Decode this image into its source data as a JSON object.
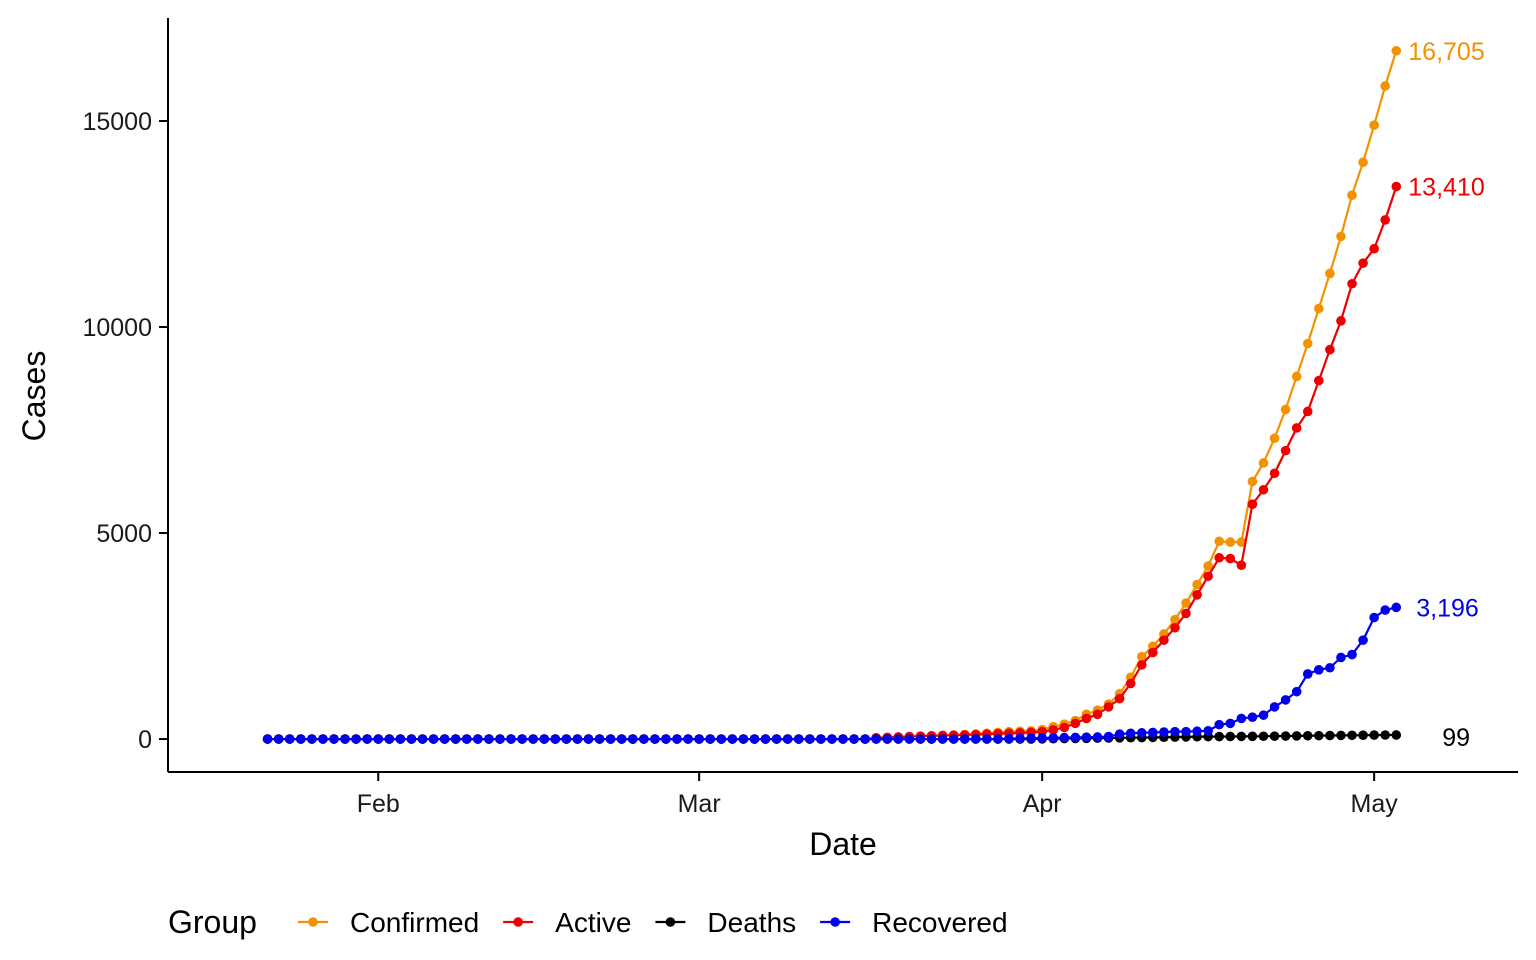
{
  "chart_data": {
    "type": "line",
    "xlabel": "Date",
    "ylabel": "Cases",
    "x_start": "2020-01-22",
    "x_end": "2020-05-03",
    "xlim": [
      "2020-01-13",
      "2020-05-14"
    ],
    "ylim": [
      -800,
      17500
    ],
    "x_ticks": [
      {
        "label": "Feb",
        "date": "2020-02-01"
      },
      {
        "label": "Mar",
        "date": "2020-03-01"
      },
      {
        "label": "Apr",
        "date": "2020-04-01"
      },
      {
        "label": "May",
        "date": "2020-05-01"
      }
    ],
    "y_ticks": [
      0,
      5000,
      10000,
      15000
    ],
    "grid": false,
    "legend": {
      "title": "Group",
      "position": "bottom"
    },
    "series": [
      {
        "name": "Confirmed",
        "color": "#F39200",
        "end_label": "16,705",
        "points": [
          [
            "2020-03-17",
            30
          ],
          [
            "2020-03-18",
            40
          ],
          [
            "2020-03-19",
            50
          ],
          [
            "2020-03-20",
            60
          ],
          [
            "2020-03-21",
            70
          ],
          [
            "2020-03-22",
            80
          ],
          [
            "2020-03-23",
            90
          ],
          [
            "2020-03-24",
            100
          ],
          [
            "2020-03-25",
            110
          ],
          [
            "2020-03-26",
            120
          ],
          [
            "2020-03-27",
            140
          ],
          [
            "2020-03-28",
            160
          ],
          [
            "2020-03-29",
            180
          ],
          [
            "2020-03-30",
            190
          ],
          [
            "2020-03-31",
            200
          ],
          [
            "2020-04-01",
            230
          ],
          [
            "2020-04-02",
            300
          ],
          [
            "2020-04-03",
            360
          ],
          [
            "2020-04-04",
            450
          ],
          [
            "2020-04-05",
            600
          ],
          [
            "2020-04-06",
            700
          ],
          [
            "2020-04-07",
            850
          ],
          [
            "2020-04-08",
            1100
          ],
          [
            "2020-04-09",
            1500
          ],
          [
            "2020-04-10",
            2000
          ],
          [
            "2020-04-11",
            2250
          ],
          [
            "2020-04-12",
            2550
          ],
          [
            "2020-04-13",
            2900
          ],
          [
            "2020-04-14",
            3300
          ],
          [
            "2020-04-15",
            3750
          ],
          [
            "2020-04-16",
            4200
          ],
          [
            "2020-04-17",
            4800
          ],
          [
            "2020-04-18",
            4780
          ],
          [
            "2020-04-19",
            4780
          ],
          [
            "2020-04-20",
            6250
          ],
          [
            "2020-04-21",
            6700
          ],
          [
            "2020-04-22",
            7300
          ],
          [
            "2020-04-23",
            8000
          ],
          [
            "2020-04-24",
            8800
          ],
          [
            "2020-04-25",
            9600
          ],
          [
            "2020-04-26",
            10450
          ],
          [
            "2020-04-27",
            11300
          ],
          [
            "2020-04-28",
            12200
          ],
          [
            "2020-04-29",
            13200
          ],
          [
            "2020-04-30",
            14000
          ],
          [
            "2020-05-01",
            14900
          ],
          [
            "2020-05-02",
            15850
          ],
          [
            "2020-05-03",
            16705
          ]
        ]
      },
      {
        "name": "Active",
        "color": "#EE0000",
        "end_label": "13,410",
        "points": [
          [
            "2020-03-17",
            30
          ],
          [
            "2020-03-18",
            40
          ],
          [
            "2020-03-19",
            50
          ],
          [
            "2020-03-20",
            60
          ],
          [
            "2020-03-21",
            70
          ],
          [
            "2020-03-22",
            80
          ],
          [
            "2020-03-23",
            85
          ],
          [
            "2020-03-24",
            90
          ],
          [
            "2020-03-25",
            100
          ],
          [
            "2020-03-26",
            110
          ],
          [
            "2020-03-27",
            120
          ],
          [
            "2020-03-28",
            130
          ],
          [
            "2020-03-29",
            140
          ],
          [
            "2020-03-30",
            150
          ],
          [
            "2020-03-31",
            160
          ],
          [
            "2020-04-01",
            180
          ],
          [
            "2020-04-02",
            220
          ],
          [
            "2020-04-03",
            280
          ],
          [
            "2020-04-04",
            380
          ],
          [
            "2020-04-05",
            500
          ],
          [
            "2020-04-06",
            600
          ],
          [
            "2020-04-07",
            780
          ],
          [
            "2020-04-08",
            980
          ],
          [
            "2020-04-09",
            1350
          ],
          [
            "2020-04-10",
            1800
          ],
          [
            "2020-04-11",
            2100
          ],
          [
            "2020-04-12",
            2400
          ],
          [
            "2020-04-13",
            2700
          ],
          [
            "2020-04-14",
            3050
          ],
          [
            "2020-04-15",
            3500
          ],
          [
            "2020-04-16",
            3950
          ],
          [
            "2020-04-17",
            4400
          ],
          [
            "2020-04-18",
            4380
          ],
          [
            "2020-04-19",
            4220
          ],
          [
            "2020-04-20",
            5700
          ],
          [
            "2020-04-21",
            6050
          ],
          [
            "2020-04-22",
            6450
          ],
          [
            "2020-04-23",
            7000
          ],
          [
            "2020-04-24",
            7550
          ],
          [
            "2020-04-25",
            7950
          ],
          [
            "2020-04-26",
            8700
          ],
          [
            "2020-04-27",
            9450
          ],
          [
            "2020-04-28",
            10150
          ],
          [
            "2020-04-29",
            11050
          ],
          [
            "2020-04-30",
            11550
          ],
          [
            "2020-05-01",
            11900
          ],
          [
            "2020-05-02",
            12600
          ],
          [
            "2020-05-03",
            13410
          ]
        ]
      },
      {
        "name": "Deaths",
        "color": "#000000",
        "end_label": "99",
        "points": [
          [
            "2020-04-01",
            5
          ],
          [
            "2020-04-02",
            8
          ],
          [
            "2020-04-03",
            12
          ],
          [
            "2020-04-04",
            15
          ],
          [
            "2020-04-05",
            18
          ],
          [
            "2020-04-06",
            22
          ],
          [
            "2020-04-07",
            25
          ],
          [
            "2020-04-08",
            30
          ],
          [
            "2020-04-09",
            33
          ],
          [
            "2020-04-10",
            36
          ],
          [
            "2020-04-11",
            40
          ],
          [
            "2020-04-12",
            44
          ],
          [
            "2020-04-13",
            48
          ],
          [
            "2020-04-14",
            52
          ],
          [
            "2020-04-15",
            55
          ],
          [
            "2020-04-16",
            58
          ],
          [
            "2020-04-17",
            60
          ],
          [
            "2020-04-18",
            62
          ],
          [
            "2020-04-19",
            64
          ],
          [
            "2020-04-20",
            66
          ],
          [
            "2020-04-21",
            68
          ],
          [
            "2020-04-22",
            70
          ],
          [
            "2020-04-23",
            73
          ],
          [
            "2020-04-24",
            76
          ],
          [
            "2020-04-25",
            79
          ],
          [
            "2020-04-26",
            82
          ],
          [
            "2020-04-27",
            85
          ],
          [
            "2020-04-28",
            88
          ],
          [
            "2020-04-29",
            91
          ],
          [
            "2020-04-30",
            94
          ],
          [
            "2020-05-01",
            96
          ],
          [
            "2020-05-02",
            98
          ],
          [
            "2020-05-03",
            99
          ]
        ]
      },
      {
        "name": "Recovered",
        "color": "#0000EE",
        "end_label": "3,196",
        "points": [
          [
            "2020-03-17",
            0
          ],
          [
            "2020-03-18",
            0
          ],
          [
            "2020-03-19",
            0
          ],
          [
            "2020-03-20",
            0
          ],
          [
            "2020-03-21",
            0
          ],
          [
            "2020-03-22",
            0
          ],
          [
            "2020-03-23",
            0
          ],
          [
            "2020-03-24",
            0
          ],
          [
            "2020-03-25",
            0
          ],
          [
            "2020-03-26",
            0
          ],
          [
            "2020-03-27",
            0
          ],
          [
            "2020-03-28",
            0
          ],
          [
            "2020-03-29",
            10
          ],
          [
            "2020-03-30",
            15
          ],
          [
            "2020-03-31",
            20
          ],
          [
            "2020-04-01",
            25
          ],
          [
            "2020-04-02",
            30
          ],
          [
            "2020-04-03",
            35
          ],
          [
            "2020-04-04",
            40
          ],
          [
            "2020-04-05",
            45
          ],
          [
            "2020-04-06",
            50
          ],
          [
            "2020-04-07",
            60
          ],
          [
            "2020-04-08",
            120
          ],
          [
            "2020-04-09",
            140
          ],
          [
            "2020-04-10",
            150
          ],
          [
            "2020-04-11",
            160
          ],
          [
            "2020-04-12",
            170
          ],
          [
            "2020-04-13",
            180
          ],
          [
            "2020-04-14",
            180
          ],
          [
            "2020-04-15",
            190
          ],
          [
            "2020-04-16",
            200
          ],
          [
            "2020-04-17",
            350
          ],
          [
            "2020-04-18",
            380
          ],
          [
            "2020-04-19",
            500
          ],
          [
            "2020-04-20",
            530
          ],
          [
            "2020-04-21",
            580
          ],
          [
            "2020-04-22",
            780
          ],
          [
            "2020-04-23",
            950
          ],
          [
            "2020-04-24",
            1150
          ],
          [
            "2020-04-25",
            1580
          ],
          [
            "2020-04-26",
            1680
          ],
          [
            "2020-04-27",
            1730
          ],
          [
            "2020-04-28",
            1980
          ],
          [
            "2020-04-29",
            2050
          ],
          [
            "2020-04-30",
            2400
          ],
          [
            "2020-05-01",
            2950
          ],
          [
            "2020-05-02",
            3130
          ],
          [
            "2020-05-03",
            3196
          ]
        ]
      }
    ]
  }
}
